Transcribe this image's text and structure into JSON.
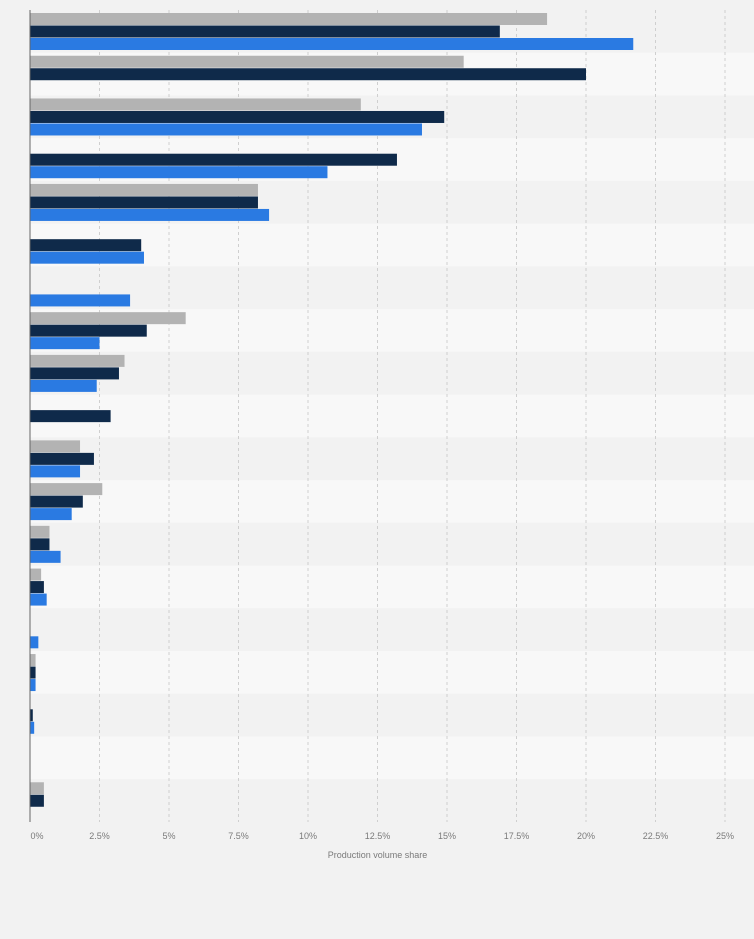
{
  "chart_data": {
    "type": "bar",
    "orientation": "horizontal",
    "title": "",
    "xlabel": "Production volume share",
    "ylabel": "",
    "xlim": [
      0,
      25
    ],
    "x_ticks": [
      0,
      2.5,
      5,
      7.5,
      10,
      12.5,
      15,
      17.5,
      20,
      22.5,
      25
    ],
    "x_tick_labels": [
      "0%",
      "2.5%",
      "5%",
      "7.5%",
      "10%",
      "12.5%",
      "15%",
      "17.5%",
      "20%",
      "22.5%",
      "25%"
    ],
    "categories": [
      "",
      "",
      "",
      "",
      "",
      "",
      "",
      "",
      "",
      "",
      "",
      "",
      "",
      "",
      "",
      "",
      "",
      "",
      ""
    ],
    "grid": true,
    "legend": "none",
    "series": [
      {
        "color": "#b3b3b3",
        "values": [
          18.6,
          15.6,
          11.9,
          null,
          8.2,
          null,
          null,
          5.6,
          3.4,
          null,
          1.8,
          2.6,
          0.7,
          0.4,
          null,
          0.2,
          null,
          null,
          0.5
        ]
      },
      {
        "color": "#0f2a4a",
        "values": [
          16.9,
          20.0,
          14.9,
          13.2,
          8.2,
          4.0,
          null,
          4.2,
          3.2,
          2.9,
          2.3,
          1.9,
          0.7,
          0.5,
          null,
          0.2,
          0.1,
          null,
          0.5
        ]
      },
      {
        "color": "#2a7ae2",
        "values": [
          21.7,
          null,
          14.1,
          10.7,
          8.6,
          4.1,
          3.6,
          2.5,
          2.4,
          null,
          1.8,
          1.5,
          1.1,
          0.6,
          0.3,
          0.2,
          0.15,
          null,
          null
        ]
      }
    ]
  }
}
